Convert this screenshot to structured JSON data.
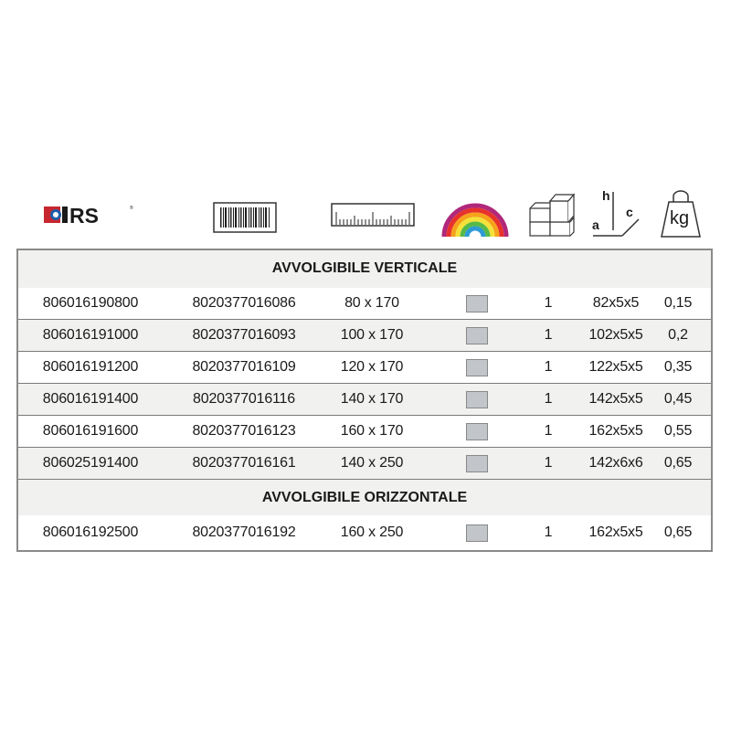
{
  "header_icons": {
    "logo_text": "IRS",
    "barcode": "barcode-icon",
    "ruler": "ruler-icon",
    "rainbow": "rainbow-color-icon",
    "boxes": "boxes-quantity-icon",
    "dimensions": {
      "h": "h",
      "a": "a",
      "c": "c"
    },
    "weight": "kg"
  },
  "colors": {
    "swatch": "#c2c6ca",
    "logo_red": "#c8262e",
    "logo_blue": "#1d5ea8"
  },
  "sections": [
    {
      "title": "AVVOLGIBILE VERTICALE",
      "rows": [
        {
          "code": "806016190800",
          "ean": "8020377016086",
          "size": "80 x 170",
          "qty": "1",
          "dims": "82x5x5",
          "weight": "0,15"
        },
        {
          "code": "806016191000",
          "ean": "8020377016093",
          "size": "100 x 170",
          "qty": "1",
          "dims": "102x5x5",
          "weight": "0,2"
        },
        {
          "code": "806016191200",
          "ean": "8020377016109",
          "size": "120 x 170",
          "qty": "1",
          "dims": "122x5x5",
          "weight": "0,35"
        },
        {
          "code": "806016191400",
          "ean": "8020377016116",
          "size": "140 x 170",
          "qty": "1",
          "dims": "142x5x5",
          "weight": "0,45"
        },
        {
          "code": "806016191600",
          "ean": "8020377016123",
          "size": "160 x 170",
          "qty": "1",
          "dims": "162x5x5",
          "weight": "0,55"
        },
        {
          "code": "806025191400",
          "ean": "8020377016161",
          "size": "140 x 250",
          "qty": "1",
          "dims": "142x6x6",
          "weight": "0,65"
        }
      ]
    },
    {
      "title": "AVVOLGIBILE ORIZZONTALE",
      "rows": [
        {
          "code": "806016192500",
          "ean": "8020377016192",
          "size": "160 x 250",
          "qty": "1",
          "dims": "162x5x5",
          "weight": "0,65"
        }
      ]
    }
  ]
}
